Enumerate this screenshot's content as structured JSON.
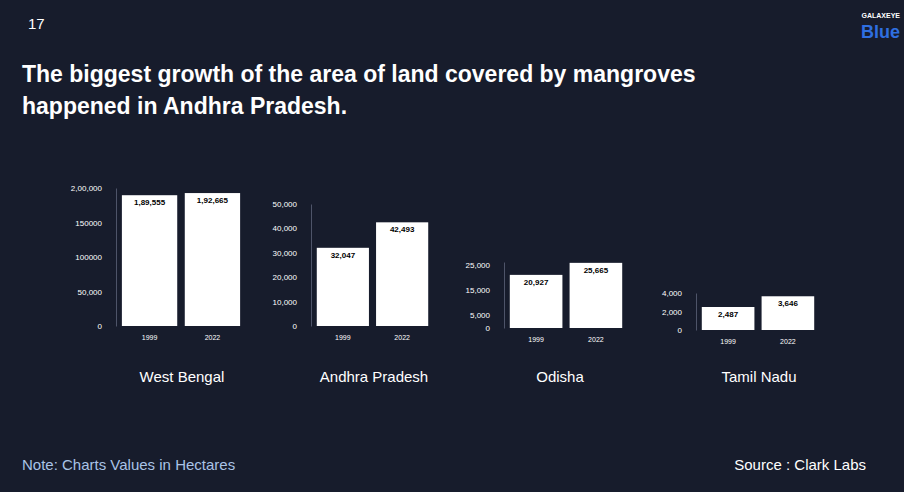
{
  "page": {
    "number": 17,
    "logo": "GALAXEYE",
    "logo_sub": "Blue",
    "title": [
      "The biggest growth of the area of land covered by mangroves",
      "happened in Andhra Pradesh."
    ],
    "note": "Note: Charts Values in Hectares",
    "source": "Source : Clark Labs"
  },
  "chart_data": [
    {
      "type": "bar",
      "title": "West Bengal",
      "categories": [
        "1999",
        "2022"
      ],
      "values": [
        189555,
        192665
      ],
      "value_labels": [
        "1,89,555",
        "1,92,665"
      ],
      "color": "#ffffff",
      "data_labels": true,
      "grid": false,
      "ylim": [
        0,
        200000
      ],
      "yticks": [
        0,
        {
          "value": 50000,
          "label": "50,000"
        },
        100000,
        150000,
        {
          "value": 200000,
          "label": "2,00,000"
        }
      ]
    },
    {
      "type": "bar",
      "title": "Andhra Pradesh",
      "categories": [
        "1999",
        "2022"
      ],
      "values": [
        32047,
        42493
      ],
      "value_labels": [
        "32,047",
        "42,493"
      ],
      "color": "#ffffff",
      "data_labels": true,
      "grid": false,
      "ylim": [
        0,
        50000
      ],
      "yticks": [
        0,
        {
          "value": 10000,
          "label": "10,000"
        },
        {
          "value": 20000,
          "label": "20,000"
        },
        {
          "value": 30000,
          "label": "30,000"
        },
        {
          "value": 40000,
          "label": "40,000"
        },
        {
          "value": 50000,
          "label": "50,000"
        }
      ]
    },
    {
      "type": "bar",
      "title": "Odisha",
      "categories": [
        "1999",
        "2022"
      ],
      "values": [
        20927,
        25665
      ],
      "value_labels": [
        "20,927",
        "25,665"
      ],
      "color": "#ffffff",
      "data_labels": true,
      "grid": false,
      "ylim": [
        0,
        26000
      ],
      "yticks": [
        0,
        {
          "value": 5000,
          "label": "5,000"
        },
        {
          "value": 15000,
          "label": "15,000"
        },
        {
          "value": 25000,
          "label": "25,000"
        }
      ]
    },
    {
      "type": "bar",
      "title": "Tamil Nadu",
      "categories": [
        "1999",
        "2022"
      ],
      "values": [
        2487,
        3646
      ],
      "value_labels": [
        "2,487",
        "3,646"
      ],
      "color": "#ffffff",
      "data_labels": true,
      "grid": false,
      "ylim": [
        0,
        4000
      ],
      "yticks": [
        0,
        {
          "value": 2000,
          "label": "2,000"
        },
        {
          "value": 4000,
          "label": "4,000"
        }
      ]
    }
  ]
}
